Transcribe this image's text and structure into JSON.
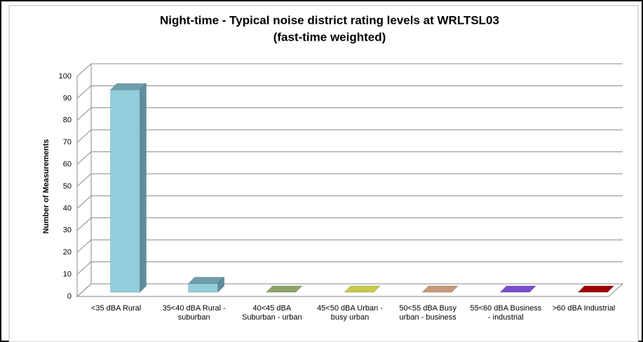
{
  "chart_data": {
    "type": "bar3d",
    "title": "Night-time - Typical noise district rating levels at WRLTSL03",
    "subtitle": "(fast-time weighted)",
    "y_label": "Number of Measurements",
    "categories": [
      "<35 dBA Rural",
      "35<40 dBA Rural - suburban",
      "40<45 dBA Suburban - urban",
      "45<50 dBA Urban - busy urban",
      "50<55 dBA Busy urban - business",
      "55<60 dBA Business - industrial",
      ">60 dBA Industrial"
    ],
    "values": [
      92,
      4,
      0,
      0,
      0,
      0,
      0
    ],
    "colors": [
      "#92cddc",
      "#92cddc",
      "#8ea46a",
      "#c8ca4c",
      "#c49a7a",
      "#7a4fcf",
      "#a00000"
    ],
    "ylim": [
      0,
      100
    ],
    "yticks": [
      0,
      10,
      20,
      30,
      40,
      50,
      60,
      70,
      80,
      90,
      100
    ],
    "grid": true
  }
}
